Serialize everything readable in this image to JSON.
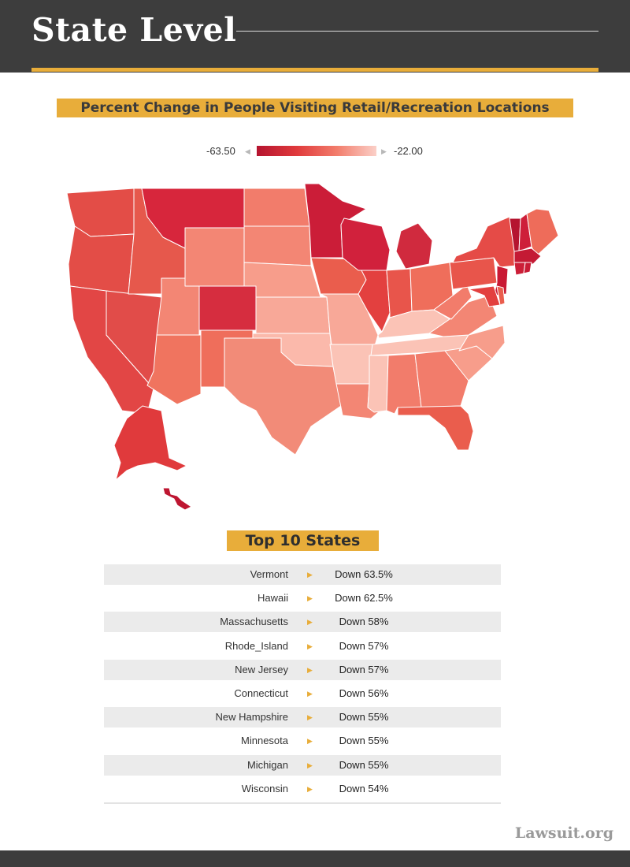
{
  "header": {
    "title": "State Level"
  },
  "map": {
    "title": "Percent Change in People Visiting Retail/Recreation Locations",
    "legend": {
      "min_label": "-63.50",
      "max_label": "-22.00",
      "colors": [
        "#b5142f",
        "#e03a3c",
        "#f27c6b",
        "#fbd0c8"
      ]
    }
  },
  "top10": {
    "title": "Top 10 States",
    "rows": [
      {
        "state": "Vermont",
        "value": "Down 63.5%"
      },
      {
        "state": "Hawaii",
        "value": "Down 62.5%"
      },
      {
        "state": "Massachusetts",
        "value": "Down 58%"
      },
      {
        "state": "Rhode_Island",
        "value": "Down 57%"
      },
      {
        "state": "New Jersey",
        "value": "Down 57%"
      },
      {
        "state": "Connecticut",
        "value": "Down 56%"
      },
      {
        "state": "New Hampshire",
        "value": "Down 55%"
      },
      {
        "state": "Minnesota",
        "value": "Down 55%"
      },
      {
        "state": "Michigan",
        "value": "Down 55%"
      },
      {
        "state": "Wisconsin",
        "value": "Down 54%"
      }
    ]
  },
  "brand": {
    "text": "Lawsuit.org"
  },
  "colors": {
    "accent": "#e8ad3a",
    "header_bg": "#3d3d3d"
  }
}
